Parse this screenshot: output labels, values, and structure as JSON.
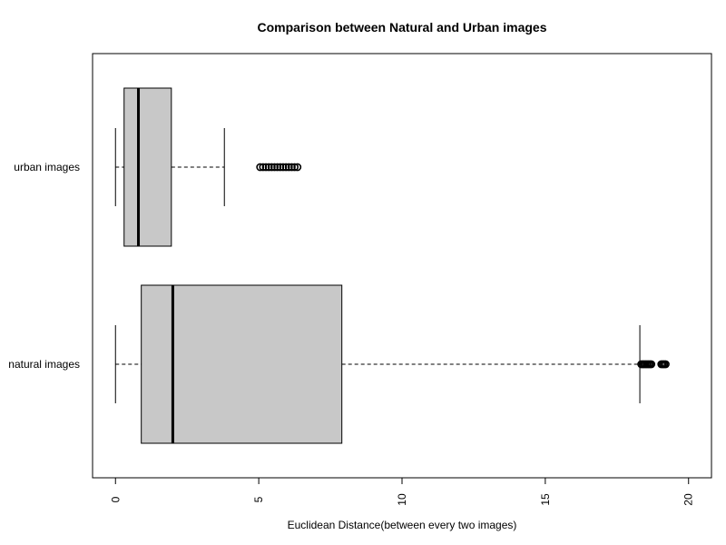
{
  "chart_data": {
    "type": "boxplot",
    "orientation": "horizontal",
    "title": "Comparison between Natural and Urban images",
    "xlabel": "Euclidean Distance(between every two images)",
    "ylabel": "",
    "xlim": [
      -0.8,
      20.8
    ],
    "xticks": [
      0,
      5,
      10,
      15,
      20
    ],
    "xtick_labels": [
      "0",
      "5",
      "10",
      "15",
      "20"
    ],
    "tick_label_rotation": "vertical",
    "grid": false,
    "legend": "none",
    "box_fill": "#c8c8c8",
    "categories": [
      "natural images",
      "urban images"
    ],
    "boxes": [
      {
        "name": "natural images",
        "whisker_low": 0.0,
        "q1": 0.9,
        "median": 2.0,
        "q3": 7.9,
        "whisker_high": 18.3,
        "outliers": [
          18.35,
          18.4,
          18.45,
          18.5,
          18.55,
          18.6,
          18.65,
          18.7,
          19.05,
          19.1,
          19.15,
          19.2
        ]
      },
      {
        "name": "urban images",
        "whisker_low": 0.0,
        "q1": 0.3,
        "median": 0.8,
        "q3": 1.95,
        "whisker_high": 3.8,
        "outliers": [
          5.05,
          5.15,
          5.25,
          5.35,
          5.45,
          5.55,
          5.65,
          5.75,
          5.85,
          5.95,
          6.05,
          6.15,
          6.25,
          6.35
        ]
      }
    ]
  }
}
